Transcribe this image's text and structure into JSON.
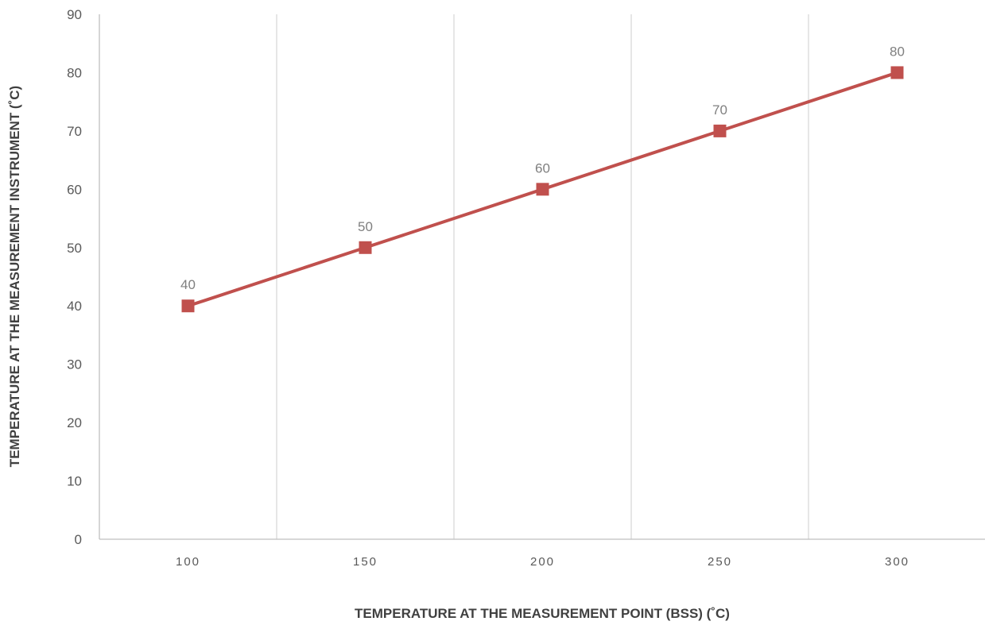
{
  "chart_data": {
    "type": "line",
    "title": "",
    "xlabel": "TEMPERATURE AT THE MEASUREMENT POINT (BSS) (˚C)",
    "ylabel": "TEMPERATURE AT THE MEASUREMENT INSTRUMENT (˚C)",
    "categories": [
      "100",
      "150",
      "200",
      "250",
      "300"
    ],
    "x": [
      100,
      150,
      200,
      250,
      300
    ],
    "ylim": [
      0,
      90
    ],
    "yticks": [
      0,
      10,
      20,
      30,
      40,
      50,
      60,
      70,
      80,
      90
    ],
    "grid": {
      "vertical": true,
      "horizontal": false
    },
    "data_labels": true,
    "series": [
      {
        "values": [
          40,
          50,
          60,
          70,
          80
        ],
        "color": "#c0504d",
        "marker": "square"
      }
    ],
    "gridline_color": "#d9d9d9",
    "axis_color": "#bfbfbf"
  }
}
